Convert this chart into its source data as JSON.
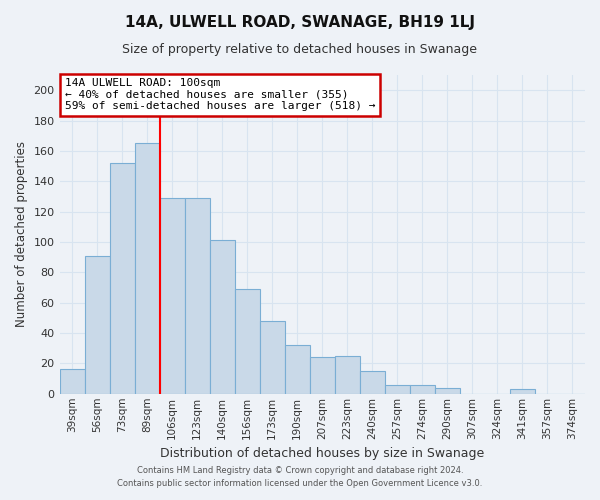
{
  "title": "14A, ULWELL ROAD, SWANAGE, BH19 1LJ",
  "subtitle": "Size of property relative to detached houses in Swanage",
  "xlabel": "Distribution of detached houses by size in Swanage",
  "ylabel": "Number of detached properties",
  "categories": [
    "39sqm",
    "56sqm",
    "73sqm",
    "89sqm",
    "106sqm",
    "123sqm",
    "140sqm",
    "156sqm",
    "173sqm",
    "190sqm",
    "207sqm",
    "223sqm",
    "240sqm",
    "257sqm",
    "274sqm",
    "290sqm",
    "307sqm",
    "324sqm",
    "341sqm",
    "357sqm",
    "374sqm"
  ],
  "values": [
    16,
    91,
    152,
    165,
    129,
    129,
    101,
    69,
    48,
    32,
    24,
    25,
    15,
    6,
    6,
    4,
    0,
    0,
    3,
    0,
    0
  ],
  "bar_color": "#c9d9e8",
  "bar_edge_color": "#7aaed4",
  "vline_x": 4.5,
  "annotation_title": "14A ULWELL ROAD: 100sqm",
  "annotation_line1": "← 40% of detached houses are smaller (355)",
  "annotation_line2": "59% of semi-detached houses are larger (518) →",
  "annotation_box_color": "#cc0000",
  "ylim": [
    0,
    210
  ],
  "yticks": [
    0,
    20,
    40,
    60,
    80,
    100,
    120,
    140,
    160,
    180,
    200
  ],
  "footer_line1": "Contains HM Land Registry data © Crown copyright and database right 2024.",
  "footer_line2": "Contains public sector information licensed under the Open Government Licence v3.0.",
  "bg_color": "#eef2f7",
  "grid_color": "#d8e4f0"
}
